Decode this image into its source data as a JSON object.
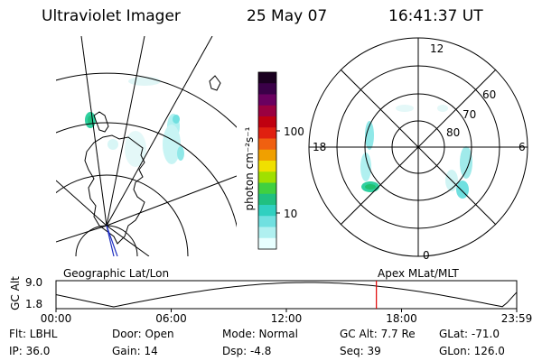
{
  "header": {
    "title": "Ultraviolet Imager",
    "date": "25 May 07",
    "time": "16:41:37 UT"
  },
  "colorbar": {
    "unit_label": "photon cm⁻²s⁻¹",
    "tick_100": "100",
    "tick_10": "10",
    "colors": [
      "#1a0020",
      "#3a0048",
      "#6a0060",
      "#9a0040",
      "#c00010",
      "#e02010",
      "#f06010",
      "#f0a000",
      "#f0e000",
      "#a0e000",
      "#40d040",
      "#20c080",
      "#30d0c0",
      "#70e0e0",
      "#b0f0f0",
      "#e8ffff"
    ]
  },
  "polar": {
    "mlt_12": "12",
    "mlt_18": "18",
    "mlt_6": "6",
    "mlt_0": "0",
    "lat_60": "60",
    "lat_70": "70",
    "lat_80": "80"
  },
  "strip": {
    "left_title": "Geographic Lat/Lon",
    "right_title": "Apex  MLat/MLT",
    "ylabel": "GC Alt",
    "ytick_top": "9.0",
    "ytick_bottom": "1.8",
    "xticks": [
      "00:00",
      "06:00",
      "12:00",
      "18:00",
      "23:59"
    ],
    "current_marker_hour": 16.69
  },
  "status": {
    "flt": "Flt: LBHL",
    "ip": "IP: 36.0",
    "door": "Door: Open",
    "gain": "Gain: 14",
    "mode": "Mode: Normal",
    "dsp": "Dsp:    -4.8",
    "gcalt": "GC Alt: 7.7 Re",
    "seq": "Seq: 39",
    "glat": "GLat: -71.0",
    "glon": "GLon: 126.0"
  }
}
